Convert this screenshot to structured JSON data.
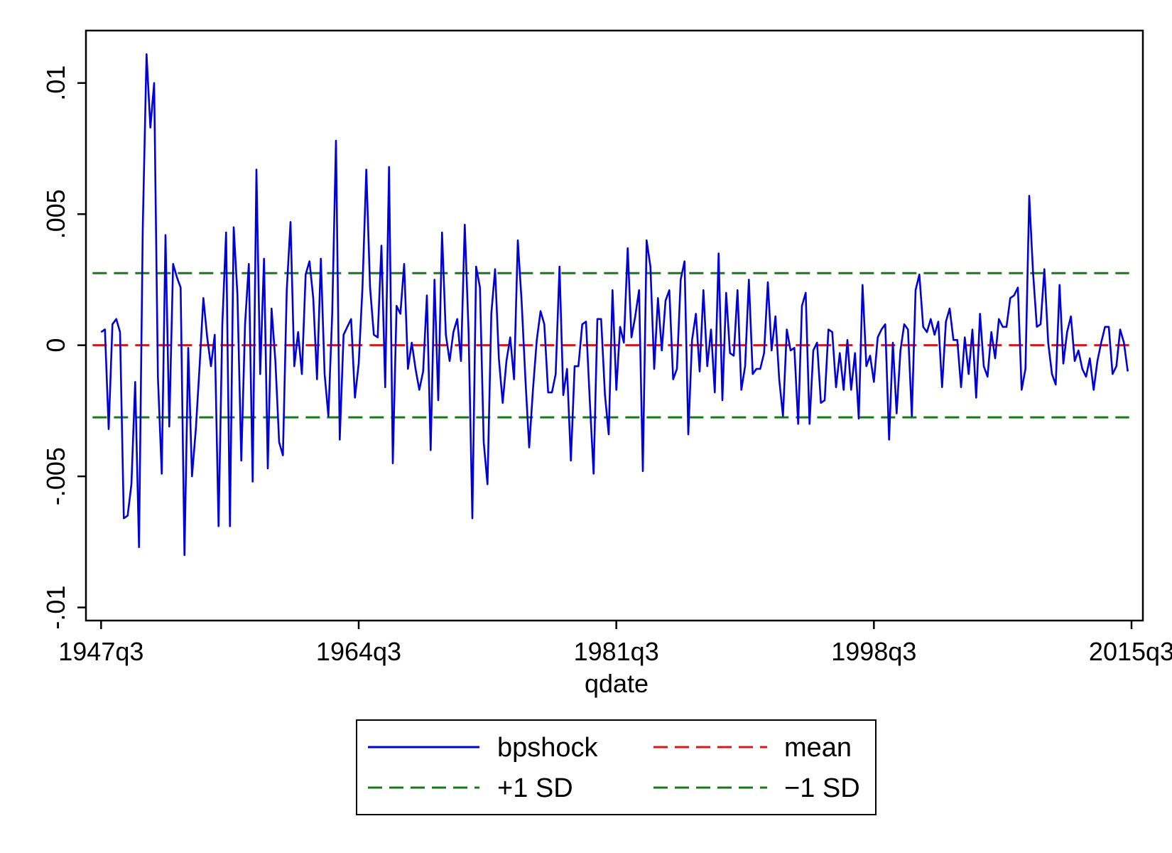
{
  "chart_data": {
    "type": "line",
    "title": "",
    "xlabel": "qdate",
    "ylabel": "",
    "ylim": [
      -0.0105,
      0.012
    ],
    "xlim": [
      "1946q3",
      "2016q2"
    ],
    "x_start": "1947q3",
    "x_ticks": [
      "1947q3",
      "1964q3",
      "1981q3",
      "1998q3",
      "2015q3"
    ],
    "y_ticks": [
      {
        "value": 0.01,
        "label": ".01"
      },
      {
        "value": 0.005,
        "label": ".005"
      },
      {
        "value": 0,
        "label": "0"
      },
      {
        "value": -0.005,
        "label": "-.005"
      },
      {
        "value": -0.01,
        "label": "-.01"
      }
    ],
    "grid": false,
    "legend_position": "bottom",
    "series": [
      {
        "name": "bpshock",
        "color": "#0000d8",
        "style": "solid",
        "values": [
          0.0005,
          0.0006,
          -0.0032,
          0.0008,
          0.001,
          0.0005,
          -0.0066,
          -0.0065,
          -0.0053,
          -0.0014,
          -0.0077,
          0.0045,
          0.0111,
          0.0083,
          0.01,
          -0.0012,
          -0.0049,
          0.0042,
          -0.0031,
          0.0031,
          0.0026,
          0.0022,
          -0.008,
          -0.0001,
          -0.005,
          -0.0032,
          -0.0008,
          0.0018,
          0.0003,
          -0.0008,
          0.0004,
          -0.0069,
          0.0008,
          0.0043,
          -0.0069,
          0.0045,
          0.0019,
          -0.0044,
          0.0008,
          0.0031,
          -0.0052,
          0.0067,
          -0.0011,
          0.0033,
          -0.0047,
          0.0014,
          -0.0006,
          -0.0037,
          -0.0042,
          0.0021,
          0.0047,
          -0.0008,
          0.0005,
          -0.0011,
          0.0027,
          0.0032,
          0.0018,
          -0.0013,
          0.0033,
          -0.0011,
          -0.0027,
          0.0012,
          0.0078,
          -0.0036,
          0.0004,
          0.0007,
          0.001,
          -0.002,
          -0.0007,
          0.0022,
          0.0067,
          0.0022,
          0.0004,
          0.0003,
          0.0038,
          -0.0016,
          0.0068,
          -0.0045,
          0.0015,
          0.0012,
          0.0031,
          -0.0009,
          0.0001,
          -0.0009,
          -0.0017,
          -0.001,
          0.0019,
          -0.004,
          0.0025,
          -0.0021,
          0.0043,
          0.0004,
          -0.0006,
          0.0005,
          0.001,
          -0.0006,
          0.0046,
          0.0005,
          -0.0066,
          0.003,
          0.0022,
          -0.0037,
          -0.0053,
          0.0012,
          0.0029,
          -0.0005,
          -0.0022,
          -0.0006,
          0.0003,
          -0.0013,
          0.004,
          0.0017,
          -0.0013,
          -0.0039,
          -0.0017,
          0.0002,
          0.0013,
          0.0008,
          -0.0018,
          -0.0018,
          -0.0011,
          0.003,
          -0.0019,
          -0.0009,
          -0.0044,
          -0.0008,
          -0.0008,
          0.0008,
          0.0009,
          -0.0021,
          -0.0049,
          0.001,
          0.001,
          -0.0019,
          -0.0034,
          0.0021,
          -0.0017,
          0.0007,
          0.0001,
          0.0037,
          0.0003,
          0.0011,
          0.0021,
          -0.0048,
          0.004,
          0.003,
          -0.0009,
          0.0018,
          -0.0002,
          0.0017,
          0.0021,
          -0.0013,
          -0.0009,
          0.0025,
          0.0032,
          -0.0034,
          0.0002,
          0.0012,
          -0.001,
          0.0021,
          -0.0008,
          0.0006,
          -0.0018,
          0.0035,
          -0.0021,
          0.002,
          -0.0003,
          -0.0004,
          0.0021,
          -0.0017,
          -0.0008,
          0.0025,
          -0.0011,
          -0.0009,
          -0.0009,
          -0.0003,
          0.0024,
          -0.0002,
          0.0011,
          -0.0013,
          -0.0027,
          0.0006,
          -0.0002,
          -0.0001,
          -0.003,
          0.0015,
          0.002,
          -0.003,
          -0.0002,
          0.0001,
          -0.0022,
          -0.0021,
          0.0006,
          0.0005,
          -0.0016,
          -0.0003,
          -0.0017,
          0.0002,
          -0.0017,
          -0.0003,
          -0.0028,
          0.0023,
          -0.0008,
          -0.0004,
          -0.0014,
          0.0003,
          0.0006,
          0.0008,
          -0.0036,
          0.0001,
          -0.0026,
          -0.0002,
          0.0008,
          0.0006,
          -0.0027,
          0.0021,
          0.0027,
          0.0007,
          0.0005,
          0.001,
          0.0004,
          0.0009,
          -0.0016,
          0.0009,
          0.0014,
          0.0002,
          0.0002,
          -0.0016,
          0.0003,
          -0.0011,
          0.0006,
          -0.002,
          0.0012,
          -0.0008,
          -0.0012,
          0.0005,
          -0.0005,
          0.001,
          0.0007,
          0.0007,
          0.0018,
          0.0019,
          0.0022,
          -0.0017,
          -0.0009,
          0.0057,
          0.0028,
          0.0007,
          0.0008,
          0.0029,
          0.0001,
          -0.0011,
          -0.0015,
          0.0023,
          -0.0007,
          0.0005,
          0.0011,
          -0.0006,
          -0.0002,
          -0.0009,
          -0.0012,
          -0.0005,
          -0.0017,
          -0.0006,
          0.0001,
          0.0007,
          0.0007,
          -0.0011,
          -0.0008,
          0.0006,
          0.0001,
          -0.001
        ]
      },
      {
        "name": "mean",
        "color": "#d81818",
        "style": "dashed",
        "value": 0
      },
      {
        "name": "+1 SD",
        "color": "#187818",
        "style": "dashed",
        "value": 0.00275
      },
      {
        "name": "−1 SD",
        "color": "#187818",
        "style": "dashed",
        "value": -0.00275
      }
    ],
    "legend": [
      {
        "label": "bpshock",
        "color": "#0000d8",
        "style": "solid"
      },
      {
        "label": "mean",
        "color": "#d81818",
        "style": "dashed"
      },
      {
        "label": "+1 SD",
        "color": "#187818",
        "style": "dashed"
      },
      {
        "label": "−1 SD",
        "color": "#187818",
        "style": "dashed"
      }
    ]
  }
}
